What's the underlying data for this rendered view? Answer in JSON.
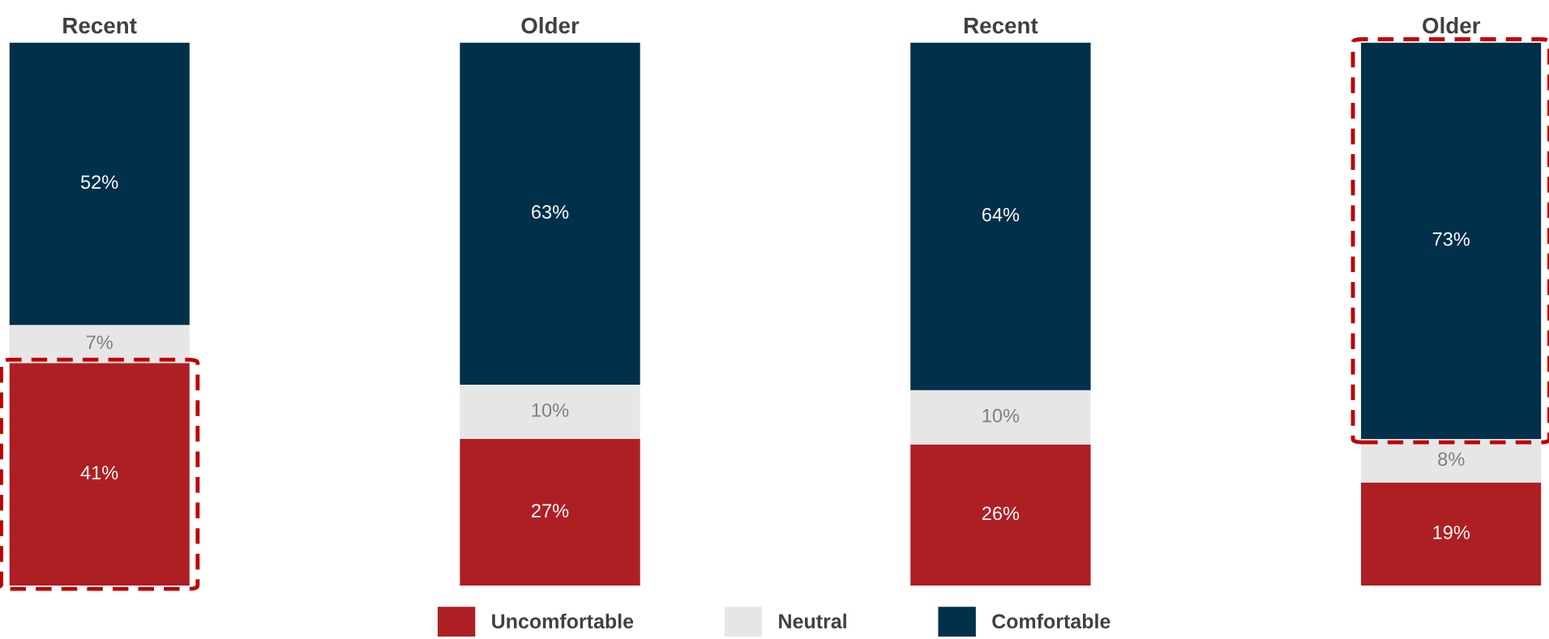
{
  "chart_data": {
    "type": "bar",
    "stacked": true,
    "categories": [
      "Recent",
      "Older",
      "Recent",
      "Older"
    ],
    "legend": "bottom",
    "grid": false,
    "tick_labels": "x",
    "series": [
      {
        "name": "Uncomfortable",
        "color": "#ae1f24",
        "values": [
          41,
          27,
          26,
          19
        ],
        "value_labels": [
          "41%",
          "27%",
          "26%",
          "19%"
        ]
      },
      {
        "name": "Neutral",
        "color": "#e6e6e6",
        "values": [
          7,
          10,
          10,
          8
        ],
        "value_labels": [
          "7%",
          "10%",
          "10%",
          "8%"
        ]
      },
      {
        "name": "Comfortable",
        "color": "#00304a",
        "values": [
          52,
          63,
          64,
          73
        ],
        "value_labels": [
          "52%",
          "63%",
          "64%",
          "73%"
        ]
      }
    ]
  }
}
